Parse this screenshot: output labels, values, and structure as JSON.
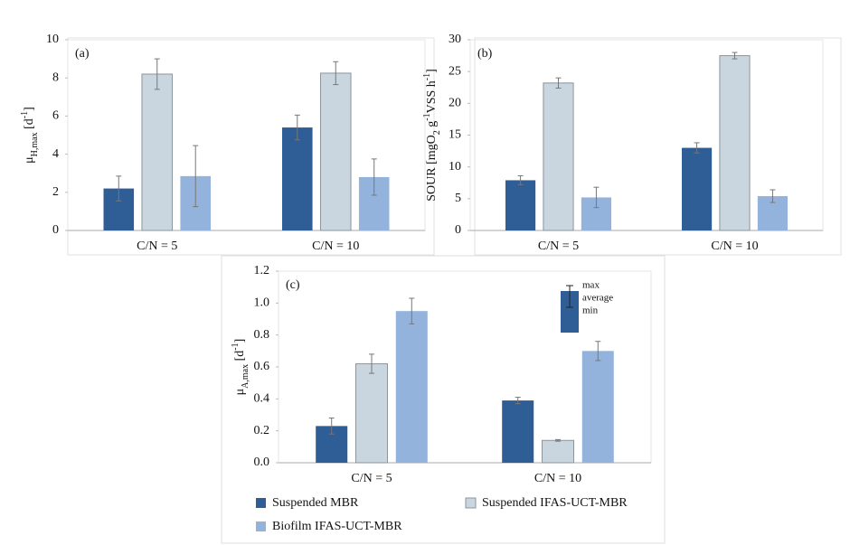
{
  "chart_data": [
    {
      "type": "bar",
      "panel_label": "(a)",
      "ylabel": [
        {
          "text": "μ"
        },
        {
          "text": "H,max",
          "sub": true
        },
        {
          "text": " [d"
        },
        {
          "text": "-1",
          "sup": true
        },
        {
          "text": "]"
        }
      ],
      "categories": [
        "C/N = 5",
        "C/N = 10"
      ],
      "ylim": [
        0,
        10
      ],
      "yticks": [
        0,
        2,
        4,
        6,
        8,
        10
      ],
      "series": [
        {
          "color": "#2f5d95",
          "values": [
            2.2,
            5.4
          ],
          "errors": [
            0.65,
            0.65
          ]
        },
        {
          "color": "#c9d6df",
          "values": [
            8.2,
            8.25
          ],
          "errors": [
            0.8,
            0.6
          ]
        },
        {
          "color": "#94b3dc",
          "values": [
            2.85,
            2.8
          ],
          "errors": [
            1.6,
            0.95
          ]
        }
      ]
    },
    {
      "type": "bar",
      "panel_label": "(b)",
      "ylabel": [
        {
          "text": "SOUR [mgO"
        },
        {
          "text": "2",
          "sub": true
        },
        {
          "text": " g"
        },
        {
          "text": "-1",
          "sup": true
        },
        {
          "text": "VSS h"
        },
        {
          "text": "-1",
          "sup": true
        },
        {
          "text": "]"
        }
      ],
      "categories": [
        "C/N = 5",
        "C/N = 10"
      ],
      "ylim": [
        0,
        30
      ],
      "yticks": [
        0,
        5,
        10,
        15,
        20,
        25,
        30
      ],
      "series": [
        {
          "color": "#2f5d95",
          "values": [
            7.9,
            13.0
          ],
          "errors": [
            0.7,
            0.8
          ]
        },
        {
          "color": "#c9d6df",
          "values": [
            23.2,
            27.5
          ],
          "errors": [
            0.8,
            0.5
          ]
        },
        {
          "color": "#94b3dc",
          "values": [
            5.2,
            5.4
          ],
          "errors": [
            1.6,
            1.0
          ]
        }
      ]
    },
    {
      "type": "bar",
      "panel_label": "(c)",
      "ylabel": [
        {
          "text": "μ"
        },
        {
          "text": "A,max",
          "sub": true
        },
        {
          "text": " [d"
        },
        {
          "text": "-1",
          "sup": true
        },
        {
          "text": "]"
        }
      ],
      "categories": [
        "C/N = 5",
        "C/N = 10"
      ],
      "ylim": [
        0,
        1.2
      ],
      "yticks": [
        {
          "value": 0,
          "label": "0.0"
        },
        0.2,
        0.4,
        0.6,
        0.8,
        {
          "value": 1,
          "label": "1.0"
        },
        1.2
      ],
      "error_key": [
        "max",
        "average",
        "min"
      ],
      "legend": true,
      "series": [
        {
          "name": "Suspended MBR",
          "color": "#2f5d95",
          "values": [
            0.23,
            0.39
          ],
          "errors": [
            0.05,
            0.02
          ]
        },
        {
          "name": "Suspended IFAS-UCT-MBR",
          "color": "#c9d6df",
          "values": [
            0.62,
            0.14
          ],
          "errors": [
            0.06,
            0.005
          ]
        },
        {
          "name": "Biofilm IFAS-UCT-MBR",
          "color": "#94b3dc",
          "values": [
            0.95,
            0.7
          ],
          "errors": [
            0.08,
            0.06
          ]
        }
      ]
    }
  ]
}
